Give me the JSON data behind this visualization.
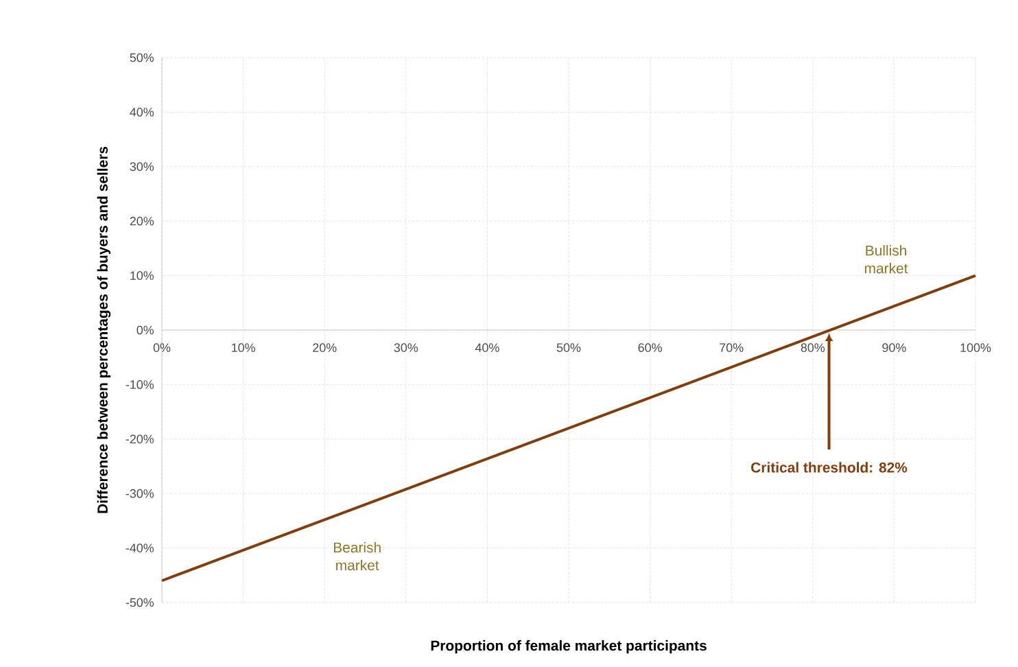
{
  "chart_data": {
    "type": "line",
    "xlabel": "Proportion of female market participants",
    "ylabel": "Difference between percentages of buyers and sellers",
    "x": [
      0,
      100
    ],
    "series": [
      {
        "color": "#843c0c",
        "values": [
          -46,
          10
        ]
      }
    ],
    "xlim": [
      0,
      100
    ],
    "xticks": [
      {
        "value": 0,
        "label": "0%"
      },
      {
        "value": 10,
        "label": "10%"
      },
      {
        "value": 20,
        "label": "20%"
      },
      {
        "value": 30,
        "label": "30%"
      },
      {
        "value": 40,
        "label": "40%"
      },
      {
        "value": 50,
        "label": "50%"
      },
      {
        "value": 60,
        "label": "60%"
      },
      {
        "value": 70,
        "label": "70%"
      },
      {
        "value": 80,
        "label": "80%"
      },
      {
        "value": 90,
        "label": "90%"
      },
      {
        "value": 100,
        "label": "100%"
      }
    ],
    "ylim": [
      -50,
      50
    ],
    "yticks": [
      {
        "value": -50,
        "label": "-50%"
      },
      {
        "value": -40,
        "label": "-40%"
      },
      {
        "value": -30,
        "label": "-30%"
      },
      {
        "value": -20,
        "label": "-20%"
      },
      {
        "value": -10,
        "label": "-10%"
      },
      {
        "value": 0,
        "label": "0%"
      },
      {
        "value": 10,
        "label": "10%"
      },
      {
        "value": 20,
        "label": "20%"
      },
      {
        "value": 30,
        "label": "30%"
      },
      {
        "value": 40,
        "label": "40%"
      },
      {
        "value": 50,
        "label": "50%"
      }
    ],
    "grid": true,
    "annotations": [
      "Bullish market",
      "Bearish market",
      {
        "text": "Critical threshold: 82%",
        "x": 82,
        "y": 0
      }
    ]
  }
}
